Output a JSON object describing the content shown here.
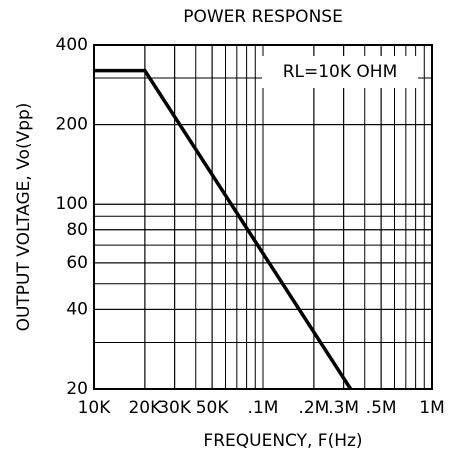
{
  "chart_data": {
    "type": "line",
    "title": "POWER RESPONSE",
    "x_label": "FREQUENCY, F(Hz)",
    "y_label": "OUTPUT VOLTAGE, Vo(Vpp)",
    "annotation": "RL=10K  OHM",
    "x": [
      10000,
      20000,
      330000
    ],
    "series": [
      {
        "name": "Vo",
        "color": "#000000",
        "values": [
          320,
          320,
          20
        ]
      }
    ],
    "xlim": [
      10000,
      1000000
    ],
    "ylim": [
      20,
      400
    ],
    "xticks": [
      {
        "value": 10000,
        "label": "10K"
      },
      {
        "value": 20000,
        "label": "20K"
      },
      {
        "value": 30000,
        "label": "30K"
      },
      {
        "value": 50000,
        "label": "50K"
      },
      {
        "value": 100000,
        "label": ".1M"
      },
      {
        "value": 200000,
        "label": ".2M"
      },
      {
        "value": 300000,
        "label": ".3M"
      },
      {
        "value": 500000,
        "label": ".5M"
      },
      {
        "value": 1000000,
        "label": "1M"
      }
    ],
    "yticks": [
      20,
      40,
      60,
      80,
      100,
      200,
      400
    ],
    "xscale": "log",
    "yscale": "log",
    "grid": true,
    "minor_grid": true
  }
}
